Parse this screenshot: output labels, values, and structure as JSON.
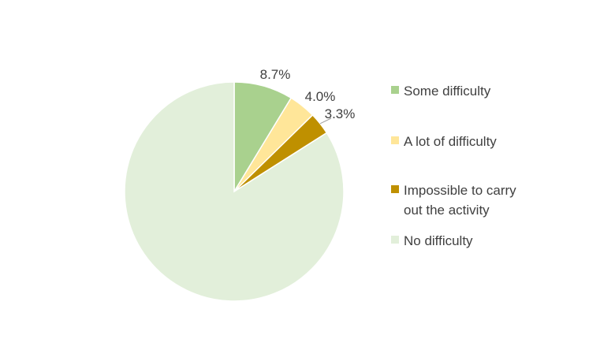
{
  "chart_data": {
    "type": "pie",
    "title": "",
    "start_angle_deg": 0,
    "direction": "clockwise",
    "slices": [
      {
        "label": "Some difficulty",
        "value": 8.7,
        "display": "8.7%",
        "color": "#a9d18e"
      },
      {
        "label": "A lot of difficulty",
        "value": 4.0,
        "display": "4.0%",
        "color": "#ffe699"
      },
      {
        "label": "Impossible to carry out the activity",
        "value": 3.3,
        "display": "3.3%",
        "color": "#bf9000"
      },
      {
        "label": "No difficulty",
        "value": 84.0,
        "display": "",
        "color": "#e2efda"
      }
    ],
    "legend": {
      "position": "right",
      "entries": [
        {
          "lines": [
            "Some difficulty"
          ],
          "color": "#a9d18e"
        },
        {
          "lines": [
            "A lot of difficulty"
          ],
          "color": "#ffe699"
        },
        {
          "lines": [
            "Impossible to carry",
            "out the activity"
          ],
          "color": "#bf9000"
        },
        {
          "lines": [
            "No difficulty"
          ],
          "color": "#e2efda"
        }
      ]
    }
  }
}
